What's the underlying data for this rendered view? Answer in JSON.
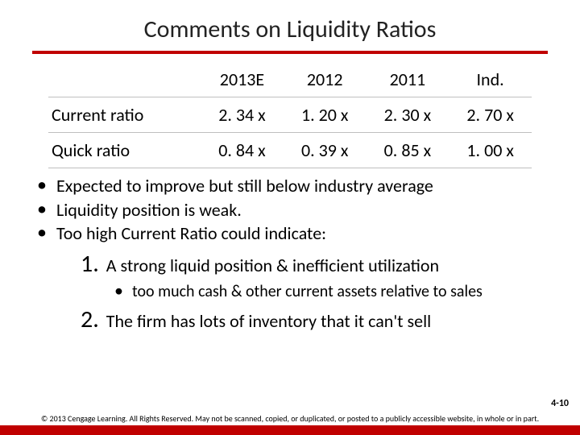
{
  "title": "Comments on Liquidity Ratios",
  "table": {
    "columns": [
      "",
      "2013E",
      "2012",
      "2011",
      "Ind."
    ],
    "rows": [
      [
        "Current ratio",
        "2. 34 x",
        "1. 20 x",
        "2. 30 x",
        "2. 70 x"
      ],
      [
        "Quick ratio",
        "0. 84 x",
        "0. 39 x",
        "0. 85 x",
        "1. 00 x"
      ]
    ]
  },
  "bullets": [
    "Expected to improve but still below industry average",
    "Liquidity position is weak.",
    "Too high Current Ratio could indicate:"
  ],
  "numbered": [
    {
      "num": "1.",
      "text": "A strong liquid position & inefficient utilization",
      "sub": [
        "too much cash & other current assets relative to sales"
      ]
    },
    {
      "num": "2.",
      "text": "The firm has lots of inventory that it can't sell"
    }
  ],
  "pagenum": "4-10",
  "copyright": "© 2013 Cengage Learning. All Rights Reserved. May not be scanned, copied, or duplicated, or posted to a publicly accessible website, in whole or in part.",
  "colors": {
    "accent": "#c00000",
    "grid": "#bfbfbf",
    "background": "#ffffff",
    "text": "#000000"
  }
}
